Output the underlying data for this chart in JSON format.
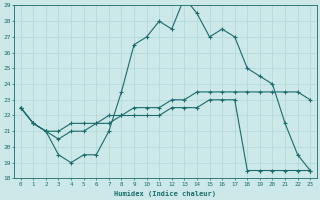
{
  "xlabel": "Humidex (Indice chaleur)",
  "ylabel": "",
  "bg_color": "#cce8e8",
  "line_color": "#1a6b6b",
  "grid_color": "#b0d8d8",
  "xlim": [
    -0.5,
    23.5
  ],
  "ylim": [
    18,
    29
  ],
  "xticks": [
    0,
    1,
    2,
    3,
    4,
    5,
    6,
    7,
    8,
    9,
    10,
    11,
    12,
    13,
    14,
    15,
    16,
    17,
    18,
    19,
    20,
    21,
    22,
    23
  ],
  "yticks": [
    18,
    19,
    20,
    21,
    22,
    23,
    24,
    25,
    26,
    27,
    28,
    29
  ],
  "line1_x": [
    0,
    1,
    2,
    3,
    4,
    5,
    6,
    7,
    8,
    9,
    10,
    11,
    12,
    13,
    14,
    15,
    16,
    17,
    18,
    19,
    20,
    21,
    22,
    23
  ],
  "line1_y": [
    22.5,
    21.5,
    21.0,
    19.5,
    19.0,
    19.5,
    19.5,
    21.0,
    23.5,
    26.5,
    27.0,
    28.0,
    27.5,
    29.5,
    28.5,
    27.0,
    27.5,
    27.0,
    25.0,
    24.5,
    24.0,
    21.5,
    19.5,
    18.5
  ],
  "line2_x": [
    0,
    1,
    2,
    3,
    4,
    5,
    6,
    7,
    8,
    9,
    10,
    11,
    12,
    13,
    14,
    15,
    16,
    17,
    18,
    19,
    20,
    21,
    22,
    23
  ],
  "line2_y": [
    22.5,
    21.5,
    21.0,
    21.0,
    21.5,
    21.5,
    21.5,
    22.0,
    22.0,
    22.5,
    22.5,
    22.5,
    23.0,
    23.0,
    23.5,
    23.5,
    23.5,
    23.5,
    23.5,
    23.5,
    23.5,
    23.5,
    23.5,
    23.0
  ],
  "line3_x": [
    0,
    1,
    2,
    3,
    4,
    5,
    6,
    7,
    8,
    9,
    10,
    11,
    12,
    13,
    14,
    15,
    16,
    17,
    18,
    19,
    20,
    21,
    22,
    23
  ],
  "line3_y": [
    22.5,
    21.5,
    21.0,
    20.5,
    21.0,
    21.0,
    21.5,
    21.5,
    22.0,
    22.0,
    22.0,
    22.0,
    22.5,
    22.5,
    22.5,
    23.0,
    23.0,
    23.0,
    18.5,
    18.5,
    18.5,
    18.5,
    18.5,
    18.5
  ]
}
